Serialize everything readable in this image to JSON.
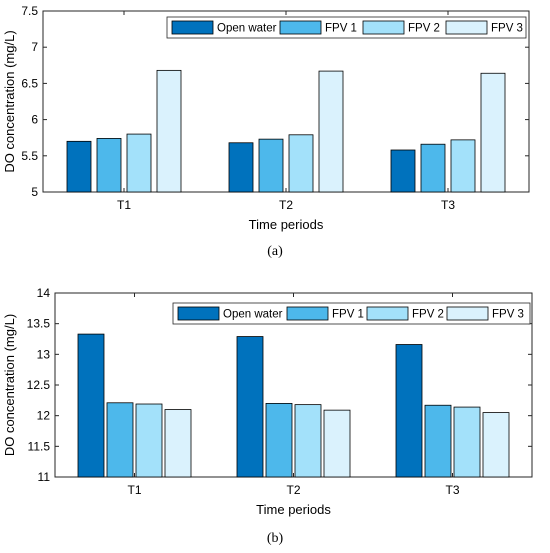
{
  "chart_data": [
    {
      "type": "bar",
      "panel_label": "(a)",
      "categories": [
        "T1",
        "T2",
        "T3"
      ],
      "series": [
        {
          "name": "Open water",
          "color": "#0072bd",
          "values": [
            5.7,
            5.68,
            5.58
          ]
        },
        {
          "name": "FPV 1",
          "color": "#4db8eb",
          "values": [
            5.74,
            5.73,
            5.66
          ]
        },
        {
          "name": "FPV 2",
          "color": "#a3e1fa",
          "values": [
            5.8,
            5.79,
            5.72
          ]
        },
        {
          "name": "FPV 3",
          "color": "#daf2fd",
          "values": [
            6.68,
            6.67,
            6.64
          ]
        }
      ],
      "xlabel": "Time periods",
      "ylabel": "DO concentration (mg/L)",
      "ylim": [
        5,
        7.5
      ],
      "yticks": [
        "5",
        "5.5",
        "6",
        "6.5",
        "7",
        "7.5"
      ],
      "grid": false,
      "legend_position": "top-right, horizontal"
    },
    {
      "type": "bar",
      "panel_label": "(b)",
      "categories": [
        "T1",
        "T2",
        "T3"
      ],
      "series": [
        {
          "name": "Open water",
          "color": "#0072bd",
          "values": [
            13.33,
            13.29,
            13.16
          ]
        },
        {
          "name": "FPV 1",
          "color": "#4db8eb",
          "values": [
            12.21,
            12.2,
            12.17
          ]
        },
        {
          "name": "FPV 2",
          "color": "#a3e1fa",
          "values": [
            12.19,
            12.18,
            12.14
          ]
        },
        {
          "name": "FPV 3",
          "color": "#daf2fd",
          "values": [
            12.1,
            12.09,
            12.05
          ]
        }
      ],
      "xlabel": "Time periods",
      "ylabel": "DO concentration (mg/L)",
      "ylim": [
        11,
        14
      ],
      "yticks": [
        "11",
        "11.5",
        "12",
        "12.5",
        "13",
        "13.5",
        "14"
      ],
      "grid": false,
      "legend_position": "top-right, horizontal"
    }
  ]
}
